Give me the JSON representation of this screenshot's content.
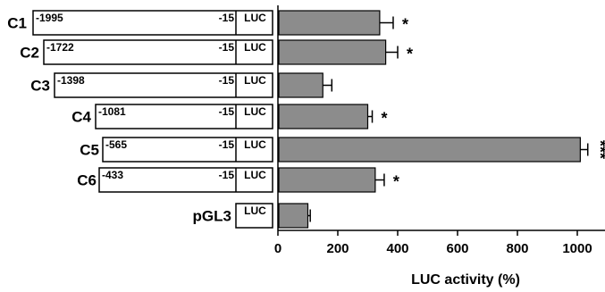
{
  "chart_data": {
    "type": "bar",
    "orientation": "horizontal",
    "xlabel": "LUC activity  (%)",
    "xlim": [
      0,
      1100
    ],
    "xticks": [
      0,
      200,
      400,
      600,
      800,
      1000
    ],
    "bar_color": "#8c8c8c",
    "rows": [
      {
        "label": "C1",
        "start": "-1995",
        "end": "-15",
        "reporter": "LUC",
        "value": 340,
        "error": 45,
        "significance": "*"
      },
      {
        "label": "C2",
        "start": "-1722",
        "end": "-15",
        "reporter": "LUC",
        "value": 360,
        "error": 40,
        "significance": "*"
      },
      {
        "label": "C3",
        "start": "-1398",
        "end": "-15",
        "reporter": "LUC",
        "value": 150,
        "error": 30,
        "significance": ""
      },
      {
        "label": "C4",
        "start": "-1081",
        "end": "-15",
        "reporter": "LUC",
        "value": 300,
        "error": 15,
        "significance": "*"
      },
      {
        "label": "C5",
        "start": "-565",
        "end": "-15",
        "reporter": "LUC",
        "value": 1010,
        "error": 25,
        "significance": "***"
      },
      {
        "label": "C6",
        "start": "-433",
        "end": "-15",
        "reporter": "LUC",
        "value": 325,
        "error": 30,
        "significance": "*"
      },
      {
        "label": "pGL3",
        "start": "",
        "end": "",
        "reporter": "LUC",
        "value": 100,
        "error": 8,
        "significance": ""
      }
    ]
  }
}
